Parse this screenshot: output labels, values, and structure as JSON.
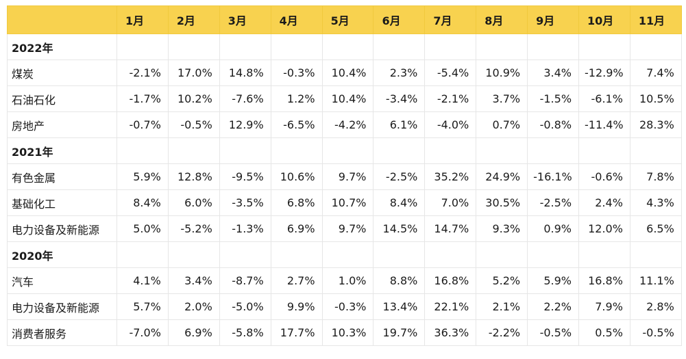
{
  "months": [
    "1月",
    "2月",
    "3月",
    "4月",
    "5月",
    "6月",
    "7月",
    "8月",
    "9月",
    "10月",
    "11月"
  ],
  "header_corner": "",
  "groups": [
    {
      "year": "2022年",
      "rows": [
        {
          "label": "煤炭",
          "values": [
            "-2.1%",
            "17.0%",
            "14.8%",
            "-0.3%",
            "10.4%",
            "2.3%",
            "-5.4%",
            "10.9%",
            "3.4%",
            "-12.9%",
            "7.4%"
          ]
        },
        {
          "label": "石油石化",
          "values": [
            "-1.7%",
            "10.2%",
            "-7.6%",
            "1.2%",
            "10.4%",
            "-3.4%",
            "-2.1%",
            "3.7%",
            "-1.5%",
            "-6.1%",
            "10.5%"
          ]
        },
        {
          "label": "房地产",
          "values": [
            "-0.7%",
            "-0.5%",
            "12.9%",
            "-6.5%",
            "-4.2%",
            "6.1%",
            "-4.0%",
            "0.7%",
            "-0.8%",
            "-11.4%",
            "28.3%"
          ]
        }
      ]
    },
    {
      "year": "2021年",
      "rows": [
        {
          "label": "有色金属",
          "values": [
            "5.9%",
            "12.8%",
            "-9.5%",
            "10.6%",
            "9.7%",
            "-2.5%",
            "35.2%",
            "24.9%",
            "-16.1%",
            "-0.6%",
            "7.8%"
          ]
        },
        {
          "label": "基础化工",
          "values": [
            "8.4%",
            "6.0%",
            "-3.5%",
            "6.8%",
            "10.7%",
            "8.4%",
            "7.0%",
            "30.5%",
            "-2.5%",
            "2.4%",
            "4.3%"
          ]
        },
        {
          "label": "电力设备及新能源",
          "values": [
            "5.0%",
            "-5.2%",
            "-1.3%",
            "6.9%",
            "9.7%",
            "14.5%",
            "14.7%",
            "9.3%",
            "0.9%",
            "12.0%",
            "6.5%"
          ]
        }
      ]
    },
    {
      "year": "2020年",
      "rows": [
        {
          "label": "汽车",
          "values": [
            "4.1%",
            "3.4%",
            "-8.7%",
            "2.7%",
            "1.0%",
            "8.8%",
            "16.8%",
            "5.2%",
            "5.9%",
            "16.8%",
            "11.1%"
          ]
        },
        {
          "label": "电力设备及新能源",
          "values": [
            "5.7%",
            "2.0%",
            "-5.0%",
            "9.9%",
            "-0.3%",
            "13.4%",
            "22.1%",
            "2.1%",
            "2.2%",
            "7.9%",
            "2.8%"
          ]
        },
        {
          "label": "消费者服务",
          "values": [
            "-7.0%",
            "6.9%",
            "-5.8%",
            "17.7%",
            "10.3%",
            "19.7%",
            "36.3%",
            "-2.2%",
            "-0.5%",
            "0.5%",
            "-0.5%"
          ]
        }
      ]
    }
  ],
  "colors": {
    "header_bg": "#f8d24f",
    "grid_line": "#e6e6e6",
    "text": "#1a1a1a"
  }
}
